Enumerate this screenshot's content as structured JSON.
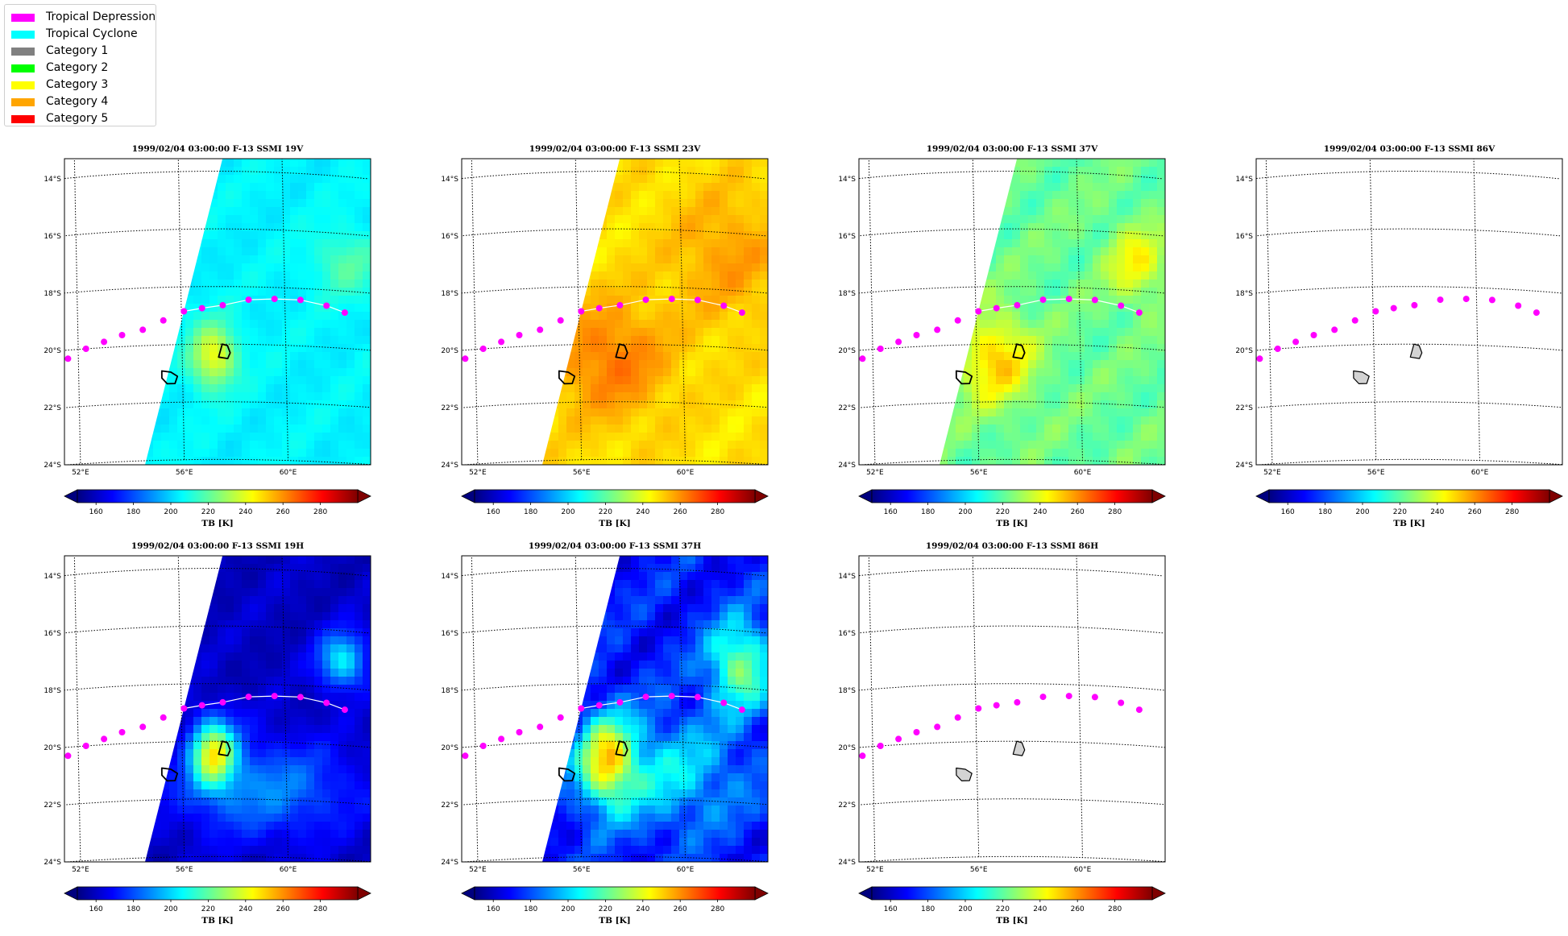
{
  "legend": {
    "items": [
      {
        "label": "Tropical Depression",
        "color": "#ff00ff"
      },
      {
        "label": "Tropical Cyclone",
        "color": "#00ffff"
      },
      {
        "label": "Category 1",
        "color": "#808080"
      },
      {
        "label": "Category 2",
        "color": "#00ff00"
      },
      {
        "label": "Category 3",
        "color": "#ffff00"
      },
      {
        "label": "Category 4",
        "color": "#ffa500"
      },
      {
        "label": "Category 5",
        "color": "#ff0000"
      }
    ]
  },
  "chart_data": [
    {
      "type": "heatmap",
      "title": "1999/02/04 03:00:00  F-13 SSMI 19V",
      "colorbar_label": "TB [K]",
      "field": "19v",
      "xlabel": "",
      "ylabel": ""
    },
    {
      "type": "heatmap",
      "title": "1999/02/04 03:00:00  F-13 SSMI 23V",
      "colorbar_label": "TB [K]",
      "field": "23v",
      "xlabel": "",
      "ylabel": ""
    },
    {
      "type": "heatmap",
      "title": "1999/02/04 03:00:00  F-13 SSMI 37V",
      "colorbar_label": "TB [K]",
      "field": "37v",
      "xlabel": "",
      "ylabel": ""
    },
    {
      "type": "heatmap",
      "title": "1999/02/04 03:00:00  F-13 SSMI 86V",
      "colorbar_label": "TB [K]",
      "field": "none",
      "xlabel": "",
      "ylabel": ""
    },
    {
      "type": "heatmap",
      "title": "1999/02/04 03:00:00  F-13 SSMI 19H",
      "colorbar_label": "TB [K]",
      "field": "19h",
      "xlabel": "",
      "ylabel": ""
    },
    {
      "type": "heatmap",
      "title": "1999/02/04 03:00:00  F-13 SSMI 37H",
      "colorbar_label": "TB [K]",
      "field": "37h",
      "xlabel": "",
      "ylabel": ""
    },
    {
      "type": "heatmap",
      "title": "1999/02/04 03:00:00  F-13 SSMI 86H",
      "colorbar_label": "TB [K]",
      "field": "none",
      "xlabel": "",
      "ylabel": ""
    }
  ],
  "map": {
    "lon_ticks": [
      "52°E",
      "56°E",
      "60°E"
    ],
    "lat_ticks": [
      "14°S",
      "16°S",
      "18°S",
      "20°S",
      "22°S",
      "24°S"
    ],
    "lon_range": [
      51.5,
      63.3
    ],
    "lat_range": [
      -24,
      -13.3
    ],
    "track": [
      [
        51.6,
        -20.3
      ],
      [
        52.3,
        -20.0
      ],
      [
        53.0,
        -19.8
      ],
      [
        53.7,
        -19.6
      ],
      [
        54.5,
        -19.45
      ],
      [
        55.3,
        -19.15
      ],
      [
        56.1,
        -18.85
      ],
      [
        56.8,
        -18.75
      ],
      [
        57.6,
        -18.65
      ],
      [
        58.6,
        -18.45
      ],
      [
        59.6,
        -18.4
      ],
      [
        60.6,
        -18.4
      ],
      [
        61.6,
        -18.55
      ],
      [
        62.3,
        -18.75
      ]
    ],
    "islands": [
      {
        "name": "Reunion",
        "points": [
          [
            55.2,
            -20.9
          ],
          [
            55.55,
            -20.95
          ],
          [
            55.8,
            -21.1
          ],
          [
            55.7,
            -21.35
          ],
          [
            55.4,
            -21.35
          ],
          [
            55.2,
            -21.15
          ]
        ]
      },
      {
        "name": "Mauritius",
        "points": [
          [
            57.55,
            -20.0
          ],
          [
            57.75,
            -20.05
          ],
          [
            57.85,
            -20.3
          ],
          [
            57.75,
            -20.5
          ],
          [
            57.4,
            -20.45
          ]
        ]
      }
    ],
    "colorbar": {
      "ticks": [
        "160",
        "180",
        "200",
        "220",
        "240",
        "260",
        "280"
      ],
      "vmin": 150,
      "vmax": 300,
      "colors": [
        "#00007f",
        "#0000ff",
        "#007fff",
        "#00ffff",
        "#7fff7f",
        "#ffff00",
        "#ff7f00",
        "#ff0000",
        "#7f0000"
      ]
    }
  }
}
